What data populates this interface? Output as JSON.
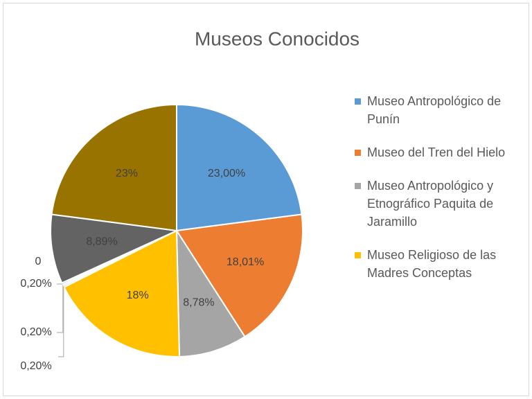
{
  "chart_data": {
    "type": "pie",
    "title": "Museos Conocidos",
    "categories": [
      "Museo Antropológico de Punín",
      "Museo del Tren del Hielo",
      "Museo Antropológico y Etnográfico Paquita de Jaramillo",
      "Museo Religioso de las Madres Conceptas",
      null,
      null,
      null,
      null,
      null,
      null
    ],
    "values": [
      23,
      18.01,
      8.78,
      18,
      0.2,
      0.2,
      0.2,
      0,
      8.89,
      23
    ],
    "value_labels": [
      "23,00%",
      "18,01%",
      "8,78%",
      "18%",
      "0,20%",
      "0,20%",
      "0,20%",
      "0",
      "8,89%",
      "23%"
    ],
    "colors": [
      "#5b9bd5",
      "#ed7d31",
      "#a5a5a5",
      "#ffc000",
      "#4472c4",
      "#70ad47",
      "#264478",
      "#9e480e",
      "#636363",
      "#997300"
    ],
    "legend": "right"
  }
}
